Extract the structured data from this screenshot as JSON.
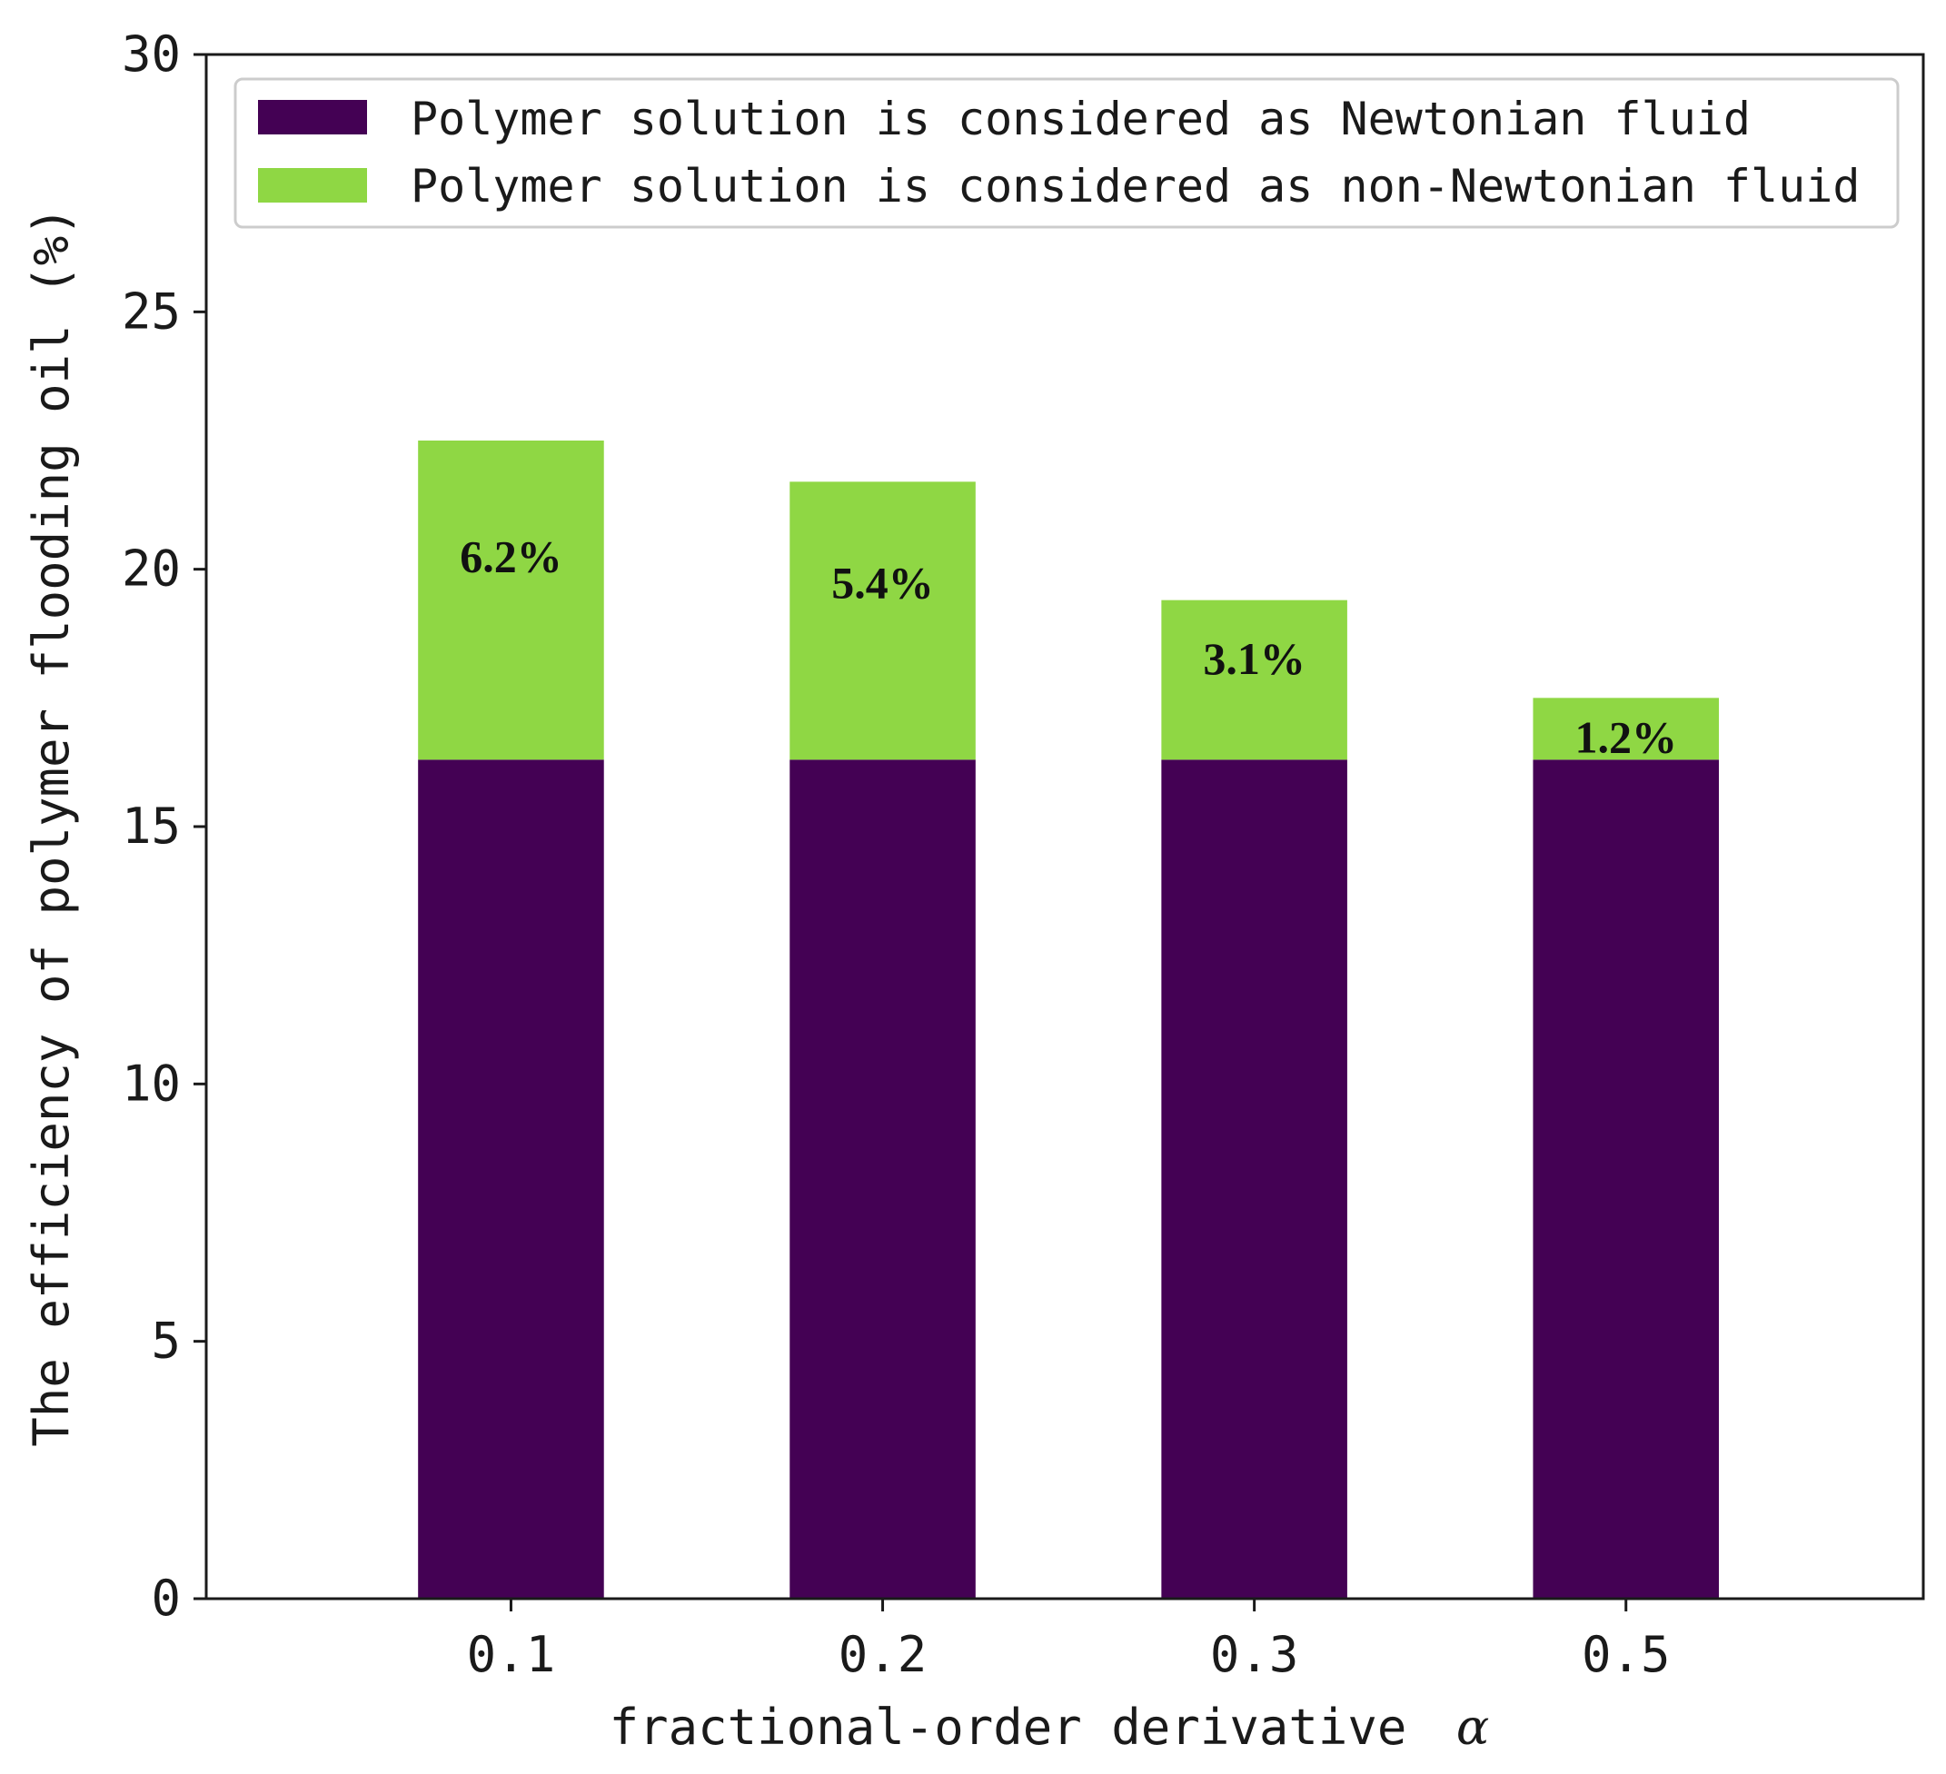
{
  "chart_data": {
    "type": "bar",
    "stacked": true,
    "categories": [
      "0.1",
      "0.2",
      "0.3",
      "0.5"
    ],
    "series": [
      {
        "name": "Polymer solution is considered as Newtonian fluid",
        "color": "#440154",
        "values": [
          16.3,
          16.3,
          16.3,
          16.3
        ]
      },
      {
        "name": "Polymer solution is considered as non-Newtonian fluid",
        "color": "#8fd744",
        "values": [
          6.2,
          5.4,
          3.1,
          1.2
        ],
        "data_labels": [
          "6.2%",
          "5.4%",
          "3.1%",
          "1.2%"
        ]
      }
    ],
    "xlabel": "fractional-order derivative",
    "xlabel_symbol": "α",
    "ylabel": "The efficiency of polymer flooding oil (%)",
    "ylim": [
      0,
      30
    ],
    "yticks": [
      "0",
      "5",
      "10",
      "15",
      "20",
      "25",
      "30"
    ],
    "grid": false,
    "legend_position": "top"
  }
}
